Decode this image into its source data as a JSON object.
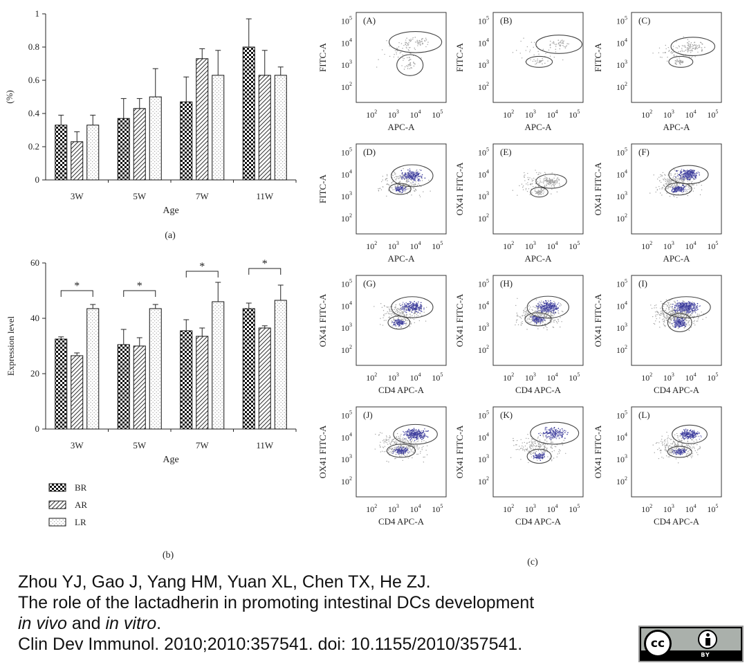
{
  "chart_data": [
    {
      "type": "bar",
      "panel_label": "(a)",
      "categories": [
        "3W",
        "5W",
        "7W",
        "11W"
      ],
      "xlabel": "Age",
      "ylabel": "(%)",
      "ylim": [
        0,
        1
      ],
      "yticks": [
        0,
        0.2,
        0.4,
        0.6,
        0.8,
        1
      ],
      "ytick_labels": [
        "0",
        "0.2",
        "0.4",
        "0.6",
        "0.8",
        "1"
      ],
      "series": [
        {
          "name": "BR",
          "values": [
            0.33,
            0.37,
            0.47,
            0.8
          ],
          "errors": [
            0.06,
            0.12,
            0.15,
            0.17
          ]
        },
        {
          "name": "AR",
          "values": [
            0.23,
            0.43,
            0.73,
            0.63
          ],
          "errors": [
            0.06,
            0.06,
            0.06,
            0.15
          ]
        },
        {
          "name": "LR",
          "values": [
            0.33,
            0.5,
            0.63,
            0.63
          ],
          "errors": [
            0.06,
            0.17,
            0.15,
            0.05
          ]
        }
      ]
    },
    {
      "type": "bar",
      "panel_label": "(b)",
      "categories": [
        "3W",
        "5W",
        "7W",
        "11W"
      ],
      "xlabel": "Age",
      "ylabel": "Expression level",
      "ylim": [
        0,
        60
      ],
      "yticks": [
        0,
        20,
        40,
        60
      ],
      "ytick_labels": [
        "0",
        "20",
        "40",
        "60"
      ],
      "series": [
        {
          "name": "BR",
          "values": [
            32.5,
            30.5,
            35.5,
            43.5
          ],
          "errors": [
            0.8,
            5.5,
            4.0,
            2.0
          ]
        },
        {
          "name": "AR",
          "values": [
            26.5,
            30.0,
            33.5,
            36.5
          ],
          "errors": [
            1.0,
            3.0,
            3.0,
            0.8
          ]
        },
        {
          "name": "LR",
          "values": [
            43.5,
            43.5,
            46.0,
            46.5
          ],
          "errors": [
            1.5,
            1.5,
            7.0,
            5.5
          ]
        }
      ],
      "significance_marker": "*",
      "significance": [
        {
          "category": "3W",
          "between": [
            "BR",
            "LR"
          ],
          "bracket_value": 50
        },
        {
          "category": "5W",
          "between": [
            "BR",
            "LR"
          ],
          "bracket_value": 50
        },
        {
          "category": "7W",
          "between": [
            "BR",
            "LR"
          ],
          "bracket_value": 57
        },
        {
          "category": "11W",
          "between": [
            "BR",
            "LR"
          ],
          "bracket_value": 58
        }
      ],
      "legend": [
        "BR",
        "AR",
        "LR"
      ]
    },
    {
      "type": "scatter",
      "panel_label": "(c)",
      "tick_labels": [
        "10",
        "10",
        "10",
        "10"
      ],
      "tick_exponents": [
        "2",
        "3",
        "4",
        "5"
      ],
      "xtick_values": [
        2,
        3,
        4,
        5
      ],
      "ytick_values": [
        2,
        3,
        4,
        5
      ],
      "panels": [
        {
          "label": "(A)",
          "xlabel": "APC-A",
          "ylabel": "FITC-A",
          "density": 0.4,
          "blue": false,
          "gates": [
            {
              "cx": 4.0,
              "cy": 4.05,
              "rx": 1.2,
              "ry": 0.48
            },
            {
              "cx": 3.75,
              "cy": 3.0,
              "rx": 0.6,
              "ry": 0.48
            }
          ]
        },
        {
          "label": "(B)",
          "xlabel": "APC-A",
          "ylabel": "FITC-A",
          "density": 0.3,
          "blue": false,
          "gates": [
            {
              "cx": 4.3,
              "cy": 3.95,
              "rx": 1.05,
              "ry": 0.42
            },
            {
              "cx": 3.4,
              "cy": 3.15,
              "rx": 0.6,
              "ry": 0.25
            }
          ]
        },
        {
          "label": "(C)",
          "xlabel": "APC-A",
          "ylabel": "FITC-A",
          "density": 0.5,
          "blue": false,
          "gates": [
            {
              "cx": 4.1,
              "cy": 3.85,
              "rx": 1.0,
              "ry": 0.42
            },
            {
              "cx": 3.55,
              "cy": 3.15,
              "rx": 0.55,
              "ry": 0.25
            }
          ]
        },
        {
          "label": "(D)",
          "xlabel": "APC-A",
          "ylabel": "FITC-A",
          "density": 1.5,
          "blue": true,
          "gates": [
            {
              "cx": 3.85,
              "cy": 3.95,
              "rx": 0.95,
              "ry": 0.5
            },
            {
              "cx": 3.3,
              "cy": 3.35,
              "rx": 0.5,
              "ry": 0.25
            }
          ]
        },
        {
          "label": "(E)",
          "xlabel": "APC-A",
          "ylabel": "OX41 FITC-A",
          "density": 0.8,
          "blue": false,
          "gates": [
            {
              "cx": 3.95,
              "cy": 3.7,
              "rx": 0.7,
              "ry": 0.32
            },
            {
              "cx": 3.4,
              "cy": 3.2,
              "rx": 0.4,
              "ry": 0.22
            }
          ]
        },
        {
          "label": "(F)",
          "xlabel": "APC-A",
          "ylabel": "OX41 FITC-A",
          "density": 2.2,
          "blue": true,
          "gates": [
            {
              "cx": 3.9,
              "cy": 4.0,
              "rx": 0.9,
              "ry": 0.42
            },
            {
              "cx": 3.45,
              "cy": 3.35,
              "rx": 0.6,
              "ry": 0.28
            }
          ]
        },
        {
          "label": "(G)",
          "xlabel": "CD4 APC-A",
          "ylabel": "OX41 FITC-A",
          "density": 1.6,
          "blue": true,
          "gates": [
            {
              "cx": 3.85,
              "cy": 3.95,
              "rx": 0.95,
              "ry": 0.48
            },
            {
              "cx": 3.25,
              "cy": 3.25,
              "rx": 0.5,
              "ry": 0.3
            }
          ]
        },
        {
          "label": "(H)",
          "xlabel": "CD4 APC-A",
          "ylabel": "OX41 FITC-A",
          "density": 2.2,
          "blue": true,
          "gates": [
            {
              "cx": 3.8,
              "cy": 3.95,
              "rx": 0.95,
              "ry": 0.5
            },
            {
              "cx": 3.35,
              "cy": 3.4,
              "rx": 0.6,
              "ry": 0.3
            }
          ]
        },
        {
          "label": "(I)",
          "xlabel": "CD4 APC-A",
          "ylabel": "OX41 FITC-A",
          "density": 3.2,
          "blue": true,
          "gates": [
            {
              "cx": 3.8,
              "cy": 3.95,
              "rx": 1.1,
              "ry": 0.48
            },
            {
              "cx": 3.5,
              "cy": 3.25,
              "rx": 0.55,
              "ry": 0.42
            }
          ]
        },
        {
          "label": "(J)",
          "xlabel": "CD4 APC-A",
          "ylabel": "OX41 FITC-A",
          "density": 2.2,
          "blue": true,
          "gates": [
            {
              "cx": 4.0,
              "cy": 4.15,
              "rx": 1.0,
              "ry": 0.45
            },
            {
              "cx": 3.35,
              "cy": 3.4,
              "rx": 0.65,
              "ry": 0.3
            }
          ]
        },
        {
          "label": "(K)",
          "xlabel": "CD4 APC-A",
          "ylabel": "OX41 FITC-A",
          "density": 1.5,
          "blue": true,
          "gates": [
            {
              "cx": 4.1,
              "cy": 4.2,
              "rx": 1.1,
              "ry": 0.5
            },
            {
              "cx": 3.4,
              "cy": 3.15,
              "rx": 0.55,
              "ry": 0.32
            }
          ]
        },
        {
          "label": "(L)",
          "xlabel": "CD4 APC-A",
          "ylabel": "OX41 FITC-A",
          "density": 1.8,
          "blue": true,
          "gates": [
            {
              "cx": 3.95,
              "cy": 4.15,
              "rx": 0.8,
              "ry": 0.42
            },
            {
              "cx": 3.5,
              "cy": 3.35,
              "rx": 0.55,
              "ry": 0.25
            }
          ]
        }
      ]
    }
  ],
  "citation": {
    "authors": "Zhou YJ, Gao J, Yang HM, Yuan XL, Chen TX, He ZJ.",
    "title": "The role of the lactadherin in promoting intestinal DCs development",
    "title_italic_1": "in vivo",
    "title_and": " and ",
    "title_italic_2": "in vitro",
    "title_end": ".",
    "journal": "Clin Dev Immunol. 2010;2010:357541. doi: 10.1155/2010/357541."
  },
  "license": {
    "cc": "cc",
    "by": "BY"
  },
  "colors": {
    "bar_outline": "#111111",
    "scatter_gray": "#9a9a9a",
    "scatter_blue": "#3a3a9a",
    "gate": "#444444"
  }
}
